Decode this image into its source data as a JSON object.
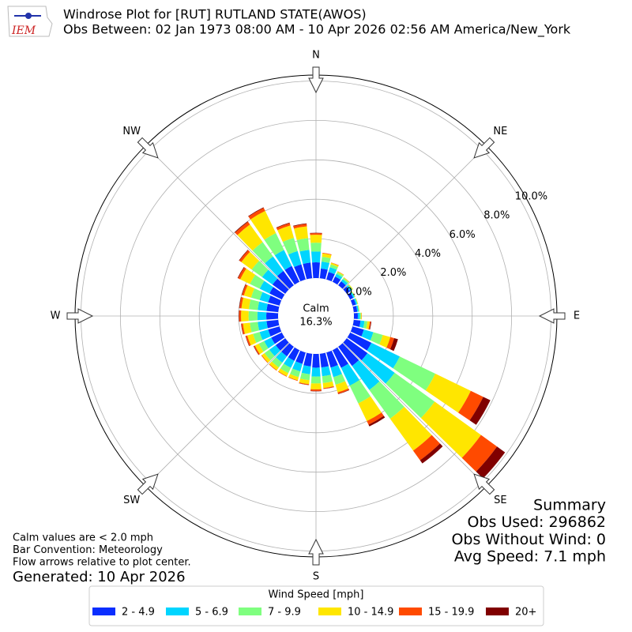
{
  "chart_data": {
    "type": "windrose",
    "title": "Windrose Plot for [RUT] RUTLAND STATE(AWOS)",
    "subtitle": "Obs Between: 02 Jan 1973 08:00 AM - 10 Apr 2026 02:56 AM America/New_York",
    "logo_text": "IEM",
    "x": [
      0,
      10,
      20,
      30,
      40,
      50,
      60,
      70,
      80,
      90,
      100,
      110,
      120,
      130,
      140,
      150,
      160,
      170,
      180,
      190,
      200,
      210,
      220,
      230,
      240,
      250,
      260,
      270,
      280,
      290,
      300,
      310,
      320,
      330,
      340,
      350
    ],
    "xticks": [
      {
        "value": 0,
        "label": "N"
      },
      {
        "value": 45,
        "label": "NE"
      },
      {
        "value": 90,
        "label": "E"
      },
      {
        "value": 135,
        "label": "SE"
      },
      {
        "value": 180,
        "label": "S"
      },
      {
        "value": 225,
        "label": "SW"
      },
      {
        "value": 270,
        "label": "W"
      },
      {
        "value": 315,
        "label": "NW"
      }
    ],
    "ylim": [
      0,
      10.3
    ],
    "yticks": [
      {
        "value": 0,
        "label": "0.0%"
      },
      {
        "value": 2,
        "label": "2.0%"
      },
      {
        "value": 4,
        "label": "4.0%"
      },
      {
        "value": 6,
        "label": "6.0%"
      },
      {
        "value": 8,
        "label": "8.0%"
      },
      {
        "value": 10,
        "label": "10.0%"
      }
    ],
    "grid": true,
    "calm_title": "Calm",
    "calm": {
      "value": 16.3,
      "label": "16.3%"
    },
    "legend_title": "Wind Speed [mph]",
    "series": [
      {
        "name": "2 - 4.9",
        "color": "#0a2eff",
        "values": [
          0.8,
          0.5,
          0.4,
          0.3,
          0.25,
          0.22,
          0.18,
          0.18,
          0.18,
          0.2,
          0.35,
          0.6,
          1.2,
          1.3,
          1.2,
          1.0,
          0.8,
          0.7,
          0.7,
          0.65,
          0.6,
          0.6,
          0.6,
          0.6,
          0.6,
          0.6,
          0.6,
          0.6,
          0.6,
          0.6,
          0.7,
          0.8,
          0.9,
          0.9,
          0.8,
          0.8
        ]
      },
      {
        "name": "5 - 6.9",
        "color": "#00d5ff",
        "values": [
          0.55,
          0.35,
          0.25,
          0.15,
          0.13,
          0.1,
          0.07,
          0.07,
          0.07,
          0.1,
          0.2,
          0.5,
          1.6,
          1.7,
          1.5,
          1.0,
          0.5,
          0.45,
          0.45,
          0.4,
          0.4,
          0.4,
          0.4,
          0.4,
          0.4,
          0.45,
          0.45,
          0.45,
          0.45,
          0.45,
          0.55,
          0.65,
          0.9,
          0.9,
          0.7,
          0.65
        ]
      },
      {
        "name": "7 - 9.9",
        "color": "#7fff7f",
        "values": [
          0.45,
          0.25,
          0.15,
          0.1,
          0.08,
          0.05,
          0.03,
          0.03,
          0.03,
          0.06,
          0.15,
          0.5,
          2.0,
          2.5,
          1.8,
          1.0,
          0.4,
          0.35,
          0.35,
          0.3,
          0.3,
          0.3,
          0.3,
          0.3,
          0.3,
          0.35,
          0.4,
          0.45,
          0.45,
          0.45,
          0.55,
          0.65,
          0.9,
          0.95,
          0.7,
          0.6
        ]
      },
      {
        "name": "10 - 14.9",
        "color": "#ffe600",
        "values": [
          0.4,
          0.17,
          0.08,
          0.04,
          0.03,
          0.03,
          0.02,
          0.02,
          0.02,
          0.03,
          0.12,
          0.4,
          2.0,
          2.9,
          2.0,
          1.0,
          0.4,
          0.25,
          0.3,
          0.2,
          0.17,
          0.17,
          0.17,
          0.17,
          0.22,
          0.3,
          0.35,
          0.38,
          0.38,
          0.38,
          0.55,
          0.65,
          1.1,
          1.25,
          0.65,
          0.6
        ]
      },
      {
        "name": "15 - 19.9",
        "color": "#ff4a00",
        "values": [
          0.08,
          0.03,
          0.02,
          0.01,
          0.01,
          0,
          0,
          0,
          0,
          0.01,
          0.05,
          0.2,
          0.7,
          1.0,
          0.6,
          0.2,
          0.08,
          0.04,
          0.08,
          0.04,
          0.03,
          0.03,
          0.03,
          0.03,
          0.06,
          0.08,
          0.08,
          0.1,
          0.1,
          0.1,
          0.12,
          0.12,
          0.17,
          0.17,
          0.12,
          0.12
        ]
      },
      {
        "name": "20+",
        "color": "#800000",
        "values": [
          0.02,
          0,
          0,
          0,
          0,
          0,
          0,
          0,
          0,
          0,
          0.03,
          0.2,
          0.4,
          0.5,
          0.2,
          0.1,
          0.02,
          0.01,
          0.02,
          0.01,
          0,
          0,
          0,
          0,
          0.02,
          0.02,
          0.02,
          0.02,
          0.02,
          0.02,
          0.03,
          0.03,
          0.03,
          0.03,
          0.03,
          0.03
        ]
      }
    ],
    "notes": [
      "Calm values are < 2.0 mph",
      "Bar Convention: Meteorology",
      "Flow arrows relative to plot center."
    ],
    "generated": "Generated: 10 Apr 2026",
    "summary": [
      "Summary",
      "Obs Used: 296862",
      "Obs Without Wind: 0",
      "Avg Speed: 7.1 mph"
    ]
  }
}
